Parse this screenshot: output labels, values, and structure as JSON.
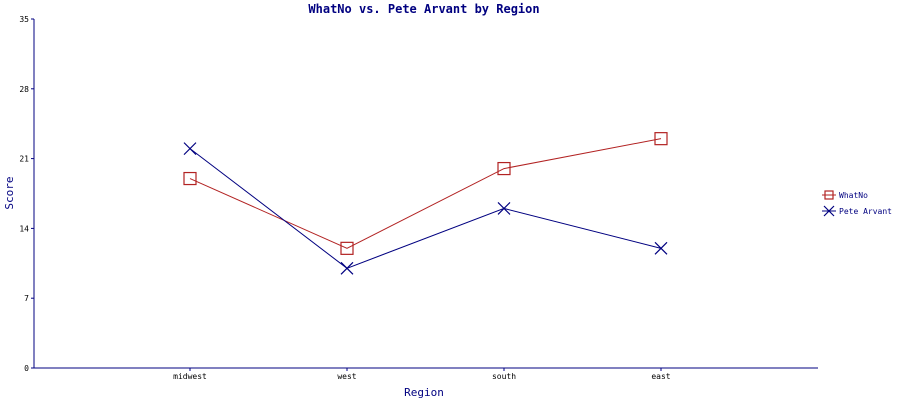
{
  "chart_data": {
    "type": "line",
    "title": "WhatNo vs. Pete Arvant by Region",
    "xlabel": "Region",
    "ylabel": "Score",
    "categories": [
      "midwest",
      "west",
      "south",
      "east"
    ],
    "ylim": [
      0,
      35
    ],
    "yticks": [
      0,
      7,
      14,
      21,
      28,
      35
    ],
    "grid": false,
    "legend_position": "right",
    "series": [
      {
        "name": "WhatNo",
        "values": [
          19,
          12,
          20,
          23
        ],
        "color": "#b22222",
        "marker": "square"
      },
      {
        "name": "Pete Arvant",
        "values": [
          22,
          10,
          16,
          12
        ],
        "color": "#000080",
        "marker": "x"
      }
    ]
  }
}
